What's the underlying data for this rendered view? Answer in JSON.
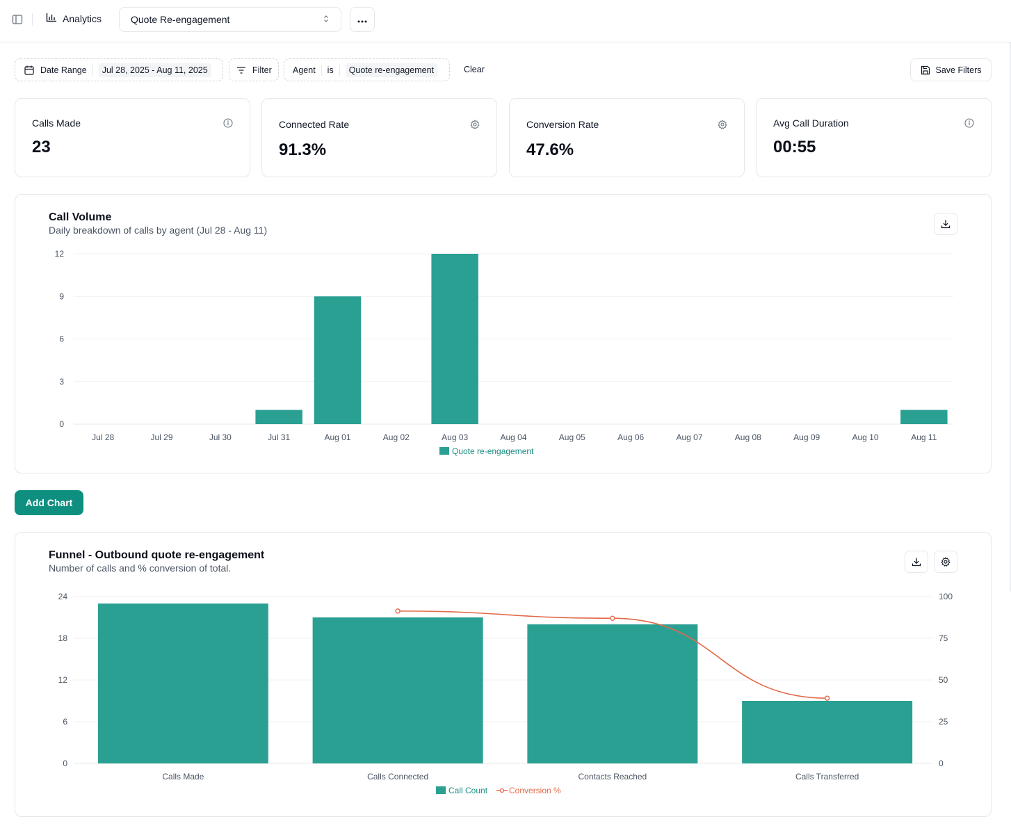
{
  "header": {
    "crumb_label": "Analytics",
    "selected_agent": "Quote Re-engagement",
    "more_label": "•••"
  },
  "filters": {
    "date_label": "Date Range",
    "date_value": "Jul 28, 2025 - Aug 11, 2025",
    "filter_label": "Filter",
    "agent_field": "Agent",
    "agent_op": "is",
    "agent_value": "Quote re-engagement",
    "clear_label": "Clear",
    "save_label": "Save Filters"
  },
  "stats": [
    {
      "label": "Calls Made",
      "value": "23",
      "icon": "info-icon"
    },
    {
      "label": "Connected Rate",
      "value": "91.3%",
      "icon": "gear-icon"
    },
    {
      "label": "Conversion Rate",
      "value": "47.6%",
      "icon": "gear-icon"
    },
    {
      "label": "Avg Call Duration",
      "value": "00:55",
      "icon": "info-icon"
    }
  ],
  "call_volume": {
    "title": "Call Volume",
    "subtitle": "Daily breakdown of calls by agent (Jul 28 - Aug 11)"
  },
  "add_chart_label": "Add Chart",
  "funnel": {
    "title": "Funnel - Outbound quote re-engagement",
    "subtitle": "Number of calls and % conversion of total."
  },
  "colors": {
    "bar": "#2aa093",
    "line": "#e2694a",
    "accent_button": "#0e8f80",
    "legend_text_bar": "#1a8f83"
  },
  "chart_data": [
    {
      "type": "bar",
      "categories": [
        "Jul 28",
        "Jul 29",
        "Jul 30",
        "Jul 31",
        "Aug 01",
        "Aug 02",
        "Aug 03",
        "Aug 04",
        "Aug 05",
        "Aug 06",
        "Aug 07",
        "Aug 08",
        "Aug 09",
        "Aug 10",
        "Aug 11"
      ],
      "series": [
        {
          "name": "Quote re-engagement",
          "values": [
            0,
            0,
            0,
            1,
            9,
            0,
            12,
            0,
            0,
            0,
            0,
            0,
            0,
            0,
            1
          ]
        }
      ],
      "title": "Call Volume",
      "subtitle": "Daily breakdown of calls by agent (Jul 28 - Aug 11)",
      "ylim": [
        0,
        12
      ],
      "yticks": [
        0,
        3,
        6,
        9,
        12
      ],
      "grid": true,
      "legend": "bottom"
    },
    {
      "type": "bar",
      "categories": [
        "Calls Made",
        "Calls Connected",
        "Contacts Reached",
        "Calls Transferred"
      ],
      "series": [
        {
          "name": "Call Count",
          "values": [
            23,
            21,
            20,
            9
          ],
          "axis": "left"
        },
        {
          "name": "Conversion %",
          "type": "line",
          "values": [
            null,
            91.3,
            87.0,
            39.1
          ],
          "axis": "right"
        }
      ],
      "title": "Funnel - Outbound quote re-engagement",
      "subtitle": "Number of calls and % conversion of total.",
      "ylim": [
        0,
        24
      ],
      "yticks": [
        0,
        6,
        12,
        18,
        24
      ],
      "y2lim": [
        0,
        100
      ],
      "y2ticks": [
        0,
        25,
        50,
        75,
        100
      ],
      "grid": true,
      "legend": "bottom"
    }
  ]
}
